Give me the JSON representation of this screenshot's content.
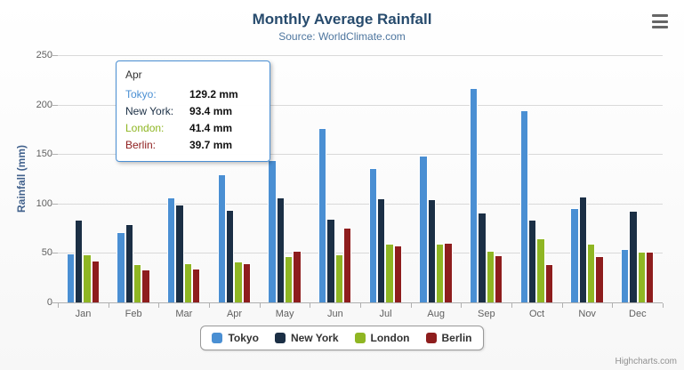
{
  "chart": {
    "title": "Monthly Average Rainfall",
    "subtitle": "Source: WorldClimate.com",
    "ylabel": "Rainfall (mm)",
    "credits": "Highcharts.com"
  },
  "chart_data": {
    "type": "bar",
    "title": "Monthly Average Rainfall",
    "subtitle": "Source: WorldClimate.com",
    "xlabel": "",
    "ylabel": "Rainfall (mm)",
    "ylim": [
      0,
      250
    ],
    "ytick_interval": 50,
    "grid": true,
    "legend_position": "bottom",
    "categories": [
      "Jan",
      "Feb",
      "Mar",
      "Apr",
      "May",
      "Jun",
      "Jul",
      "Aug",
      "Sep",
      "Oct",
      "Nov",
      "Dec"
    ],
    "series": [
      {
        "name": "Tokyo",
        "color": "#4a8fd3",
        "values": [
          49.9,
          71.5,
          106.4,
          129.2,
          144.0,
          176.0,
          135.6,
          148.5,
          216.4,
          194.1,
          95.6,
          54.4
        ]
      },
      {
        "name": "New York",
        "color": "#1b2f45",
        "values": [
          83.6,
          78.8,
          98.5,
          93.4,
          106.0,
          84.5,
          105.0,
          104.3,
          91.2,
          83.5,
          106.6,
          92.3
        ]
      },
      {
        "name": "London",
        "color": "#8fb623",
        "values": [
          48.9,
          38.8,
          39.3,
          41.4,
          47.0,
          48.3,
          59.0,
          59.6,
          52.4,
          65.2,
          59.3,
          51.2
        ]
      },
      {
        "name": "Berlin",
        "color": "#8e1d1d",
        "values": [
          42.4,
          33.2,
          34.5,
          39.7,
          52.6,
          75.5,
          57.4,
          60.4,
          47.6,
          39.1,
          46.8,
          51.1
        ]
      }
    ]
  },
  "tooltip": {
    "header": "Apr",
    "rows": [
      {
        "label": "Tokyo:",
        "value": "129.2 mm",
        "color": "#4a8fd3"
      },
      {
        "label": "New York:",
        "value": "93.4 mm",
        "color": "#1b2f45"
      },
      {
        "label": "London:",
        "value": "41.4 mm",
        "color": "#8fb623"
      },
      {
        "label": "Berlin:",
        "value": "39.7 mm",
        "color": "#8e1d1d"
      }
    ]
  }
}
